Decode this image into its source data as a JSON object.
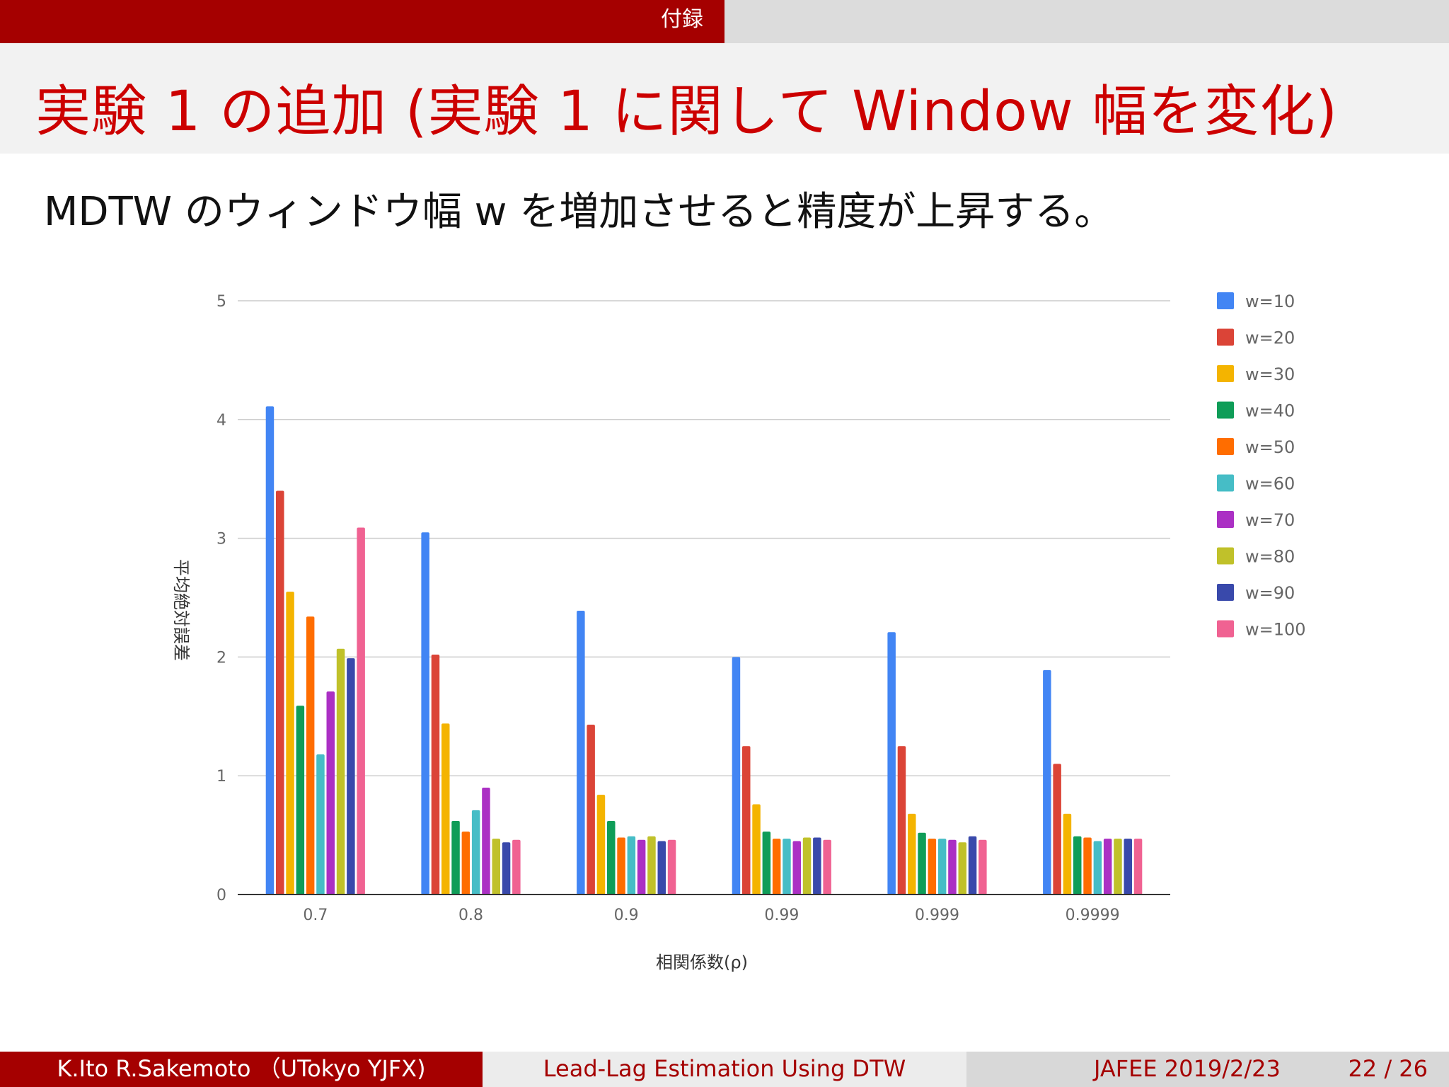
{
  "header": {
    "section": "付録"
  },
  "slide": {
    "title": "実験 1 の追加 (実験 1 に関して Window 幅を変化)",
    "subtitle": "MDTW のウィンドウ幅 w を増加させると精度が上昇する。"
  },
  "footer": {
    "authors": "K.Ito R.Sakemoto （UTokyo YJFX)",
    "talk_title": "Lead-Lag Estimation Using DTW",
    "event": "JAFEE 2019/2/23",
    "page": "22 / 26"
  },
  "chart_data": {
    "type": "bar",
    "title": "",
    "xlabel": "相関係数(ρ)",
    "ylabel": "平均絶対誤差",
    "ylim": [
      0,
      5
    ],
    "yticks": [
      0,
      1,
      2,
      3,
      4,
      5
    ],
    "grid": true,
    "legend_position": "right",
    "categories": [
      "0.7",
      "0.8",
      "0.9",
      "0.99",
      "0.999",
      "0.9999"
    ],
    "series": [
      {
        "name": "w=10",
        "color": "#4285f4",
        "values": [
          4.11,
          3.05,
          2.39,
          2.0,
          2.21,
          1.89
        ]
      },
      {
        "name": "w=20",
        "color": "#db4437",
        "values": [
          3.4,
          2.02,
          1.43,
          1.25,
          1.25,
          1.1
        ]
      },
      {
        "name": "w=30",
        "color": "#f4b400",
        "values": [
          2.55,
          1.44,
          0.84,
          0.76,
          0.68,
          0.68
        ]
      },
      {
        "name": "w=40",
        "color": "#0f9d58",
        "values": [
          1.59,
          0.62,
          0.62,
          0.53,
          0.52,
          0.49
        ]
      },
      {
        "name": "w=50",
        "color": "#ff6d00",
        "values": [
          2.34,
          0.53,
          0.48,
          0.47,
          0.47,
          0.48
        ]
      },
      {
        "name": "w=60",
        "color": "#46bdc6",
        "values": [
          1.18,
          0.71,
          0.49,
          0.47,
          0.47,
          0.45
        ]
      },
      {
        "name": "w=70",
        "color": "#ab30c4",
        "values": [
          1.71,
          0.9,
          0.46,
          0.45,
          0.46,
          0.47
        ]
      },
      {
        "name": "w=80",
        "color": "#c0c12a",
        "values": [
          2.07,
          0.47,
          0.49,
          0.48,
          0.44,
          0.47
        ]
      },
      {
        "name": "w=90",
        "color": "#3949ab",
        "values": [
          1.99,
          0.44,
          0.45,
          0.48,
          0.49,
          0.47
        ]
      },
      {
        "name": "w=100",
        "color": "#f06292",
        "values": [
          3.09,
          0.46,
          0.46,
          0.46,
          0.46,
          0.47
        ]
      }
    ]
  }
}
